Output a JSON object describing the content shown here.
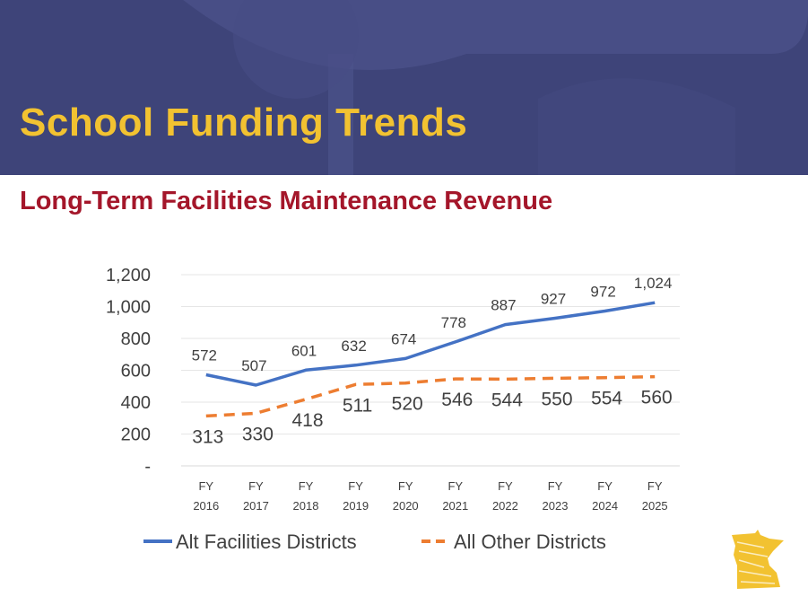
{
  "slide": {
    "title": "School Funding Trends",
    "subtitle": "Long-Term Facilities Maintenance Revenue"
  },
  "colors": {
    "banner": "#3e4479",
    "title": "#f2c231",
    "subtitle": "#a4162a",
    "series_alt": "#4472c4",
    "series_other": "#ed7d31"
  },
  "logo": {
    "icon": "minnesota-state-logo-icon"
  },
  "chart_data": {
    "type": "line",
    "categories": [
      [
        "FY",
        "2016"
      ],
      [
        "FY",
        "2017"
      ],
      [
        "FY",
        "2018"
      ],
      [
        "FY",
        "2019"
      ],
      [
        "FY",
        "2020"
      ],
      [
        "FY",
        "2021"
      ],
      [
        "FY",
        "2022"
      ],
      [
        "FY",
        "2023"
      ],
      [
        "FY",
        "2024"
      ],
      [
        "FY",
        "2025"
      ]
    ],
    "series": [
      {
        "name": "Alt Facilities Districts",
        "values": [
          572,
          507,
          601,
          632,
          674,
          778,
          887,
          927,
          972,
          1024
        ],
        "labels": [
          "572",
          "507",
          "601",
          "632",
          "674",
          "778",
          "887",
          "927",
          "972",
          "1,024"
        ],
        "style": "solid",
        "color": "#4472c4",
        "label_position": "above"
      },
      {
        "name": "All Other Districts",
        "values": [
          313,
          330,
          418,
          511,
          520,
          546,
          544,
          550,
          554,
          560
        ],
        "labels": [
          "313",
          "330",
          "418",
          "511",
          "520",
          "546",
          "544",
          "550",
          "554",
          "560"
        ],
        "style": "dashed",
        "color": "#ed7d31",
        "label_position": "below"
      }
    ],
    "y_ticks": [
      0,
      200,
      400,
      600,
      800,
      1000,
      1200
    ],
    "y_tick_labels": [
      "-",
      "200",
      "400",
      "600",
      "800",
      "1,000",
      "1,200"
    ],
    "ylim": [
      0,
      1200
    ],
    "grid": true,
    "legend_position": "bottom"
  }
}
